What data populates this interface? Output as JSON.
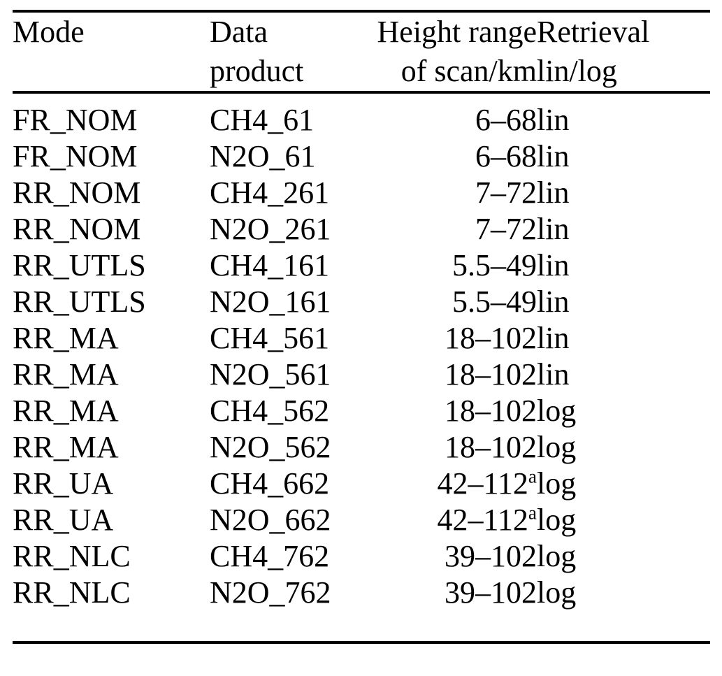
{
  "colors": {
    "background": "#ffffff",
    "text": "#000000",
    "rule": "#000000"
  },
  "table": {
    "columns": [
      {
        "line1": "Mode",
        "line2": ""
      },
      {
        "line1": "Data",
        "line2": "product"
      },
      {
        "line1": "Height range",
        "line2": "of scan/km"
      },
      {
        "line1": "Retrieval",
        "line2": "lin/log"
      }
    ],
    "rows": [
      {
        "mode": "FR_NOM",
        "product": "CH4_61",
        "range": "6–68",
        "sup": "",
        "retrieval": "lin"
      },
      {
        "mode": "FR_NOM",
        "product": "N2O_61",
        "range": "6–68",
        "sup": "",
        "retrieval": "lin"
      },
      {
        "mode": "RR_NOM",
        "product": "CH4_261",
        "range": "7–72",
        "sup": "",
        "retrieval": "lin"
      },
      {
        "mode": "RR_NOM",
        "product": "N2O_261",
        "range": "7–72",
        "sup": "",
        "retrieval": "lin"
      },
      {
        "mode": "RR_UTLS",
        "product": "CH4_161",
        "range": "5.5–49",
        "sup": "",
        "retrieval": "lin"
      },
      {
        "mode": "RR_UTLS",
        "product": "N2O_161",
        "range": "5.5–49",
        "sup": "",
        "retrieval": "lin"
      },
      {
        "mode": "RR_MA",
        "product": "CH4_561",
        "range": "18–102",
        "sup": "",
        "retrieval": "lin"
      },
      {
        "mode": "RR_MA",
        "product": "N2O_561",
        "range": "18–102",
        "sup": "",
        "retrieval": "lin"
      },
      {
        "mode": "RR_MA",
        "product": "CH4_562",
        "range": "18–102",
        "sup": "",
        "retrieval": "log"
      },
      {
        "mode": "RR_MA",
        "product": "N2O_562",
        "range": "18–102",
        "sup": "",
        "retrieval": "log"
      },
      {
        "mode": "RR_UA",
        "product": "CH4_662",
        "range": "42–112",
        "sup": "a",
        "retrieval": "log"
      },
      {
        "mode": "RR_UA",
        "product": "N2O_662",
        "range": "42–112",
        "sup": "a",
        "retrieval": "log"
      },
      {
        "mode": "RR_NLC",
        "product": "CH4_762",
        "range": "39–102",
        "sup": "",
        "retrieval": "log"
      },
      {
        "mode": "RR_NLC",
        "product": "N2O_762",
        "range": "39–102",
        "sup": "",
        "retrieval": "log"
      }
    ]
  }
}
